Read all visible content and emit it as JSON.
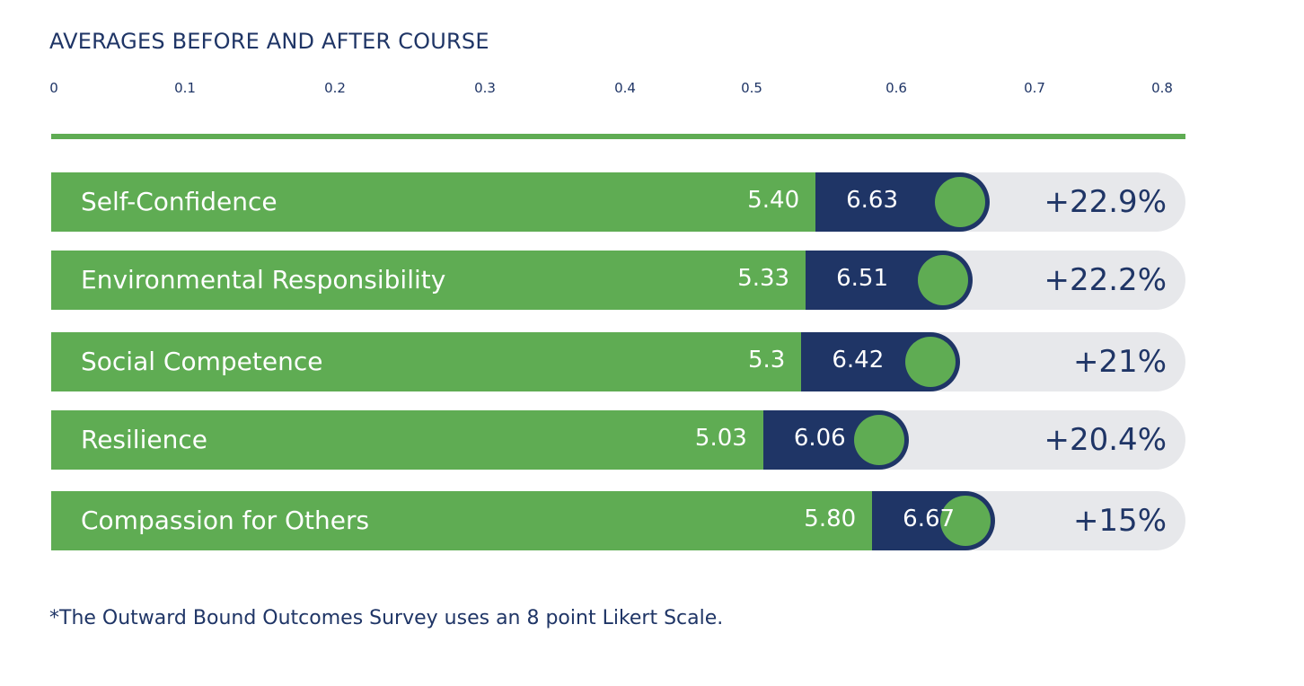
{
  "chart_data": {
    "type": "bar",
    "title": "AVERAGES BEFORE AND AFTER COURSE",
    "axis_ticks": [
      "0",
      "0.1",
      "0.2",
      "0.3",
      "0.4",
      "0.5",
      "0.6",
      "0.7",
      "0.8"
    ],
    "categories": [
      "Self-Confidence",
      "Environmental Responsibility",
      "Social Competence",
      "Resilience",
      "Compassion for Others"
    ],
    "series": [
      {
        "values": [
          5.4,
          5.33,
          5.3,
          5.03,
          5.8
        ],
        "labels": [
          "5.40",
          "5.33",
          "5.3",
          "5.03",
          "5.80"
        ]
      },
      {
        "values": [
          6.63,
          6.51,
          6.42,
          6.06,
          6.67
        ],
        "labels": [
          "6.63",
          "6.51",
          "6.42",
          "6.06",
          "6.67"
        ]
      }
    ],
    "change_labels": [
      "+22.9%",
      "+22.2%",
      "+21%",
      "+20.4%",
      "+15%"
    ],
    "value_max": 8,
    "grid": false,
    "legend": "none",
    "colors": {
      "before": "#5fac53",
      "after": "#1f3566",
      "track": "#e7e8eb",
      "text": "#1f3566"
    }
  },
  "footnote": "*The Outward Bound Outcomes Survey uses an 8 point Likert Scale."
}
